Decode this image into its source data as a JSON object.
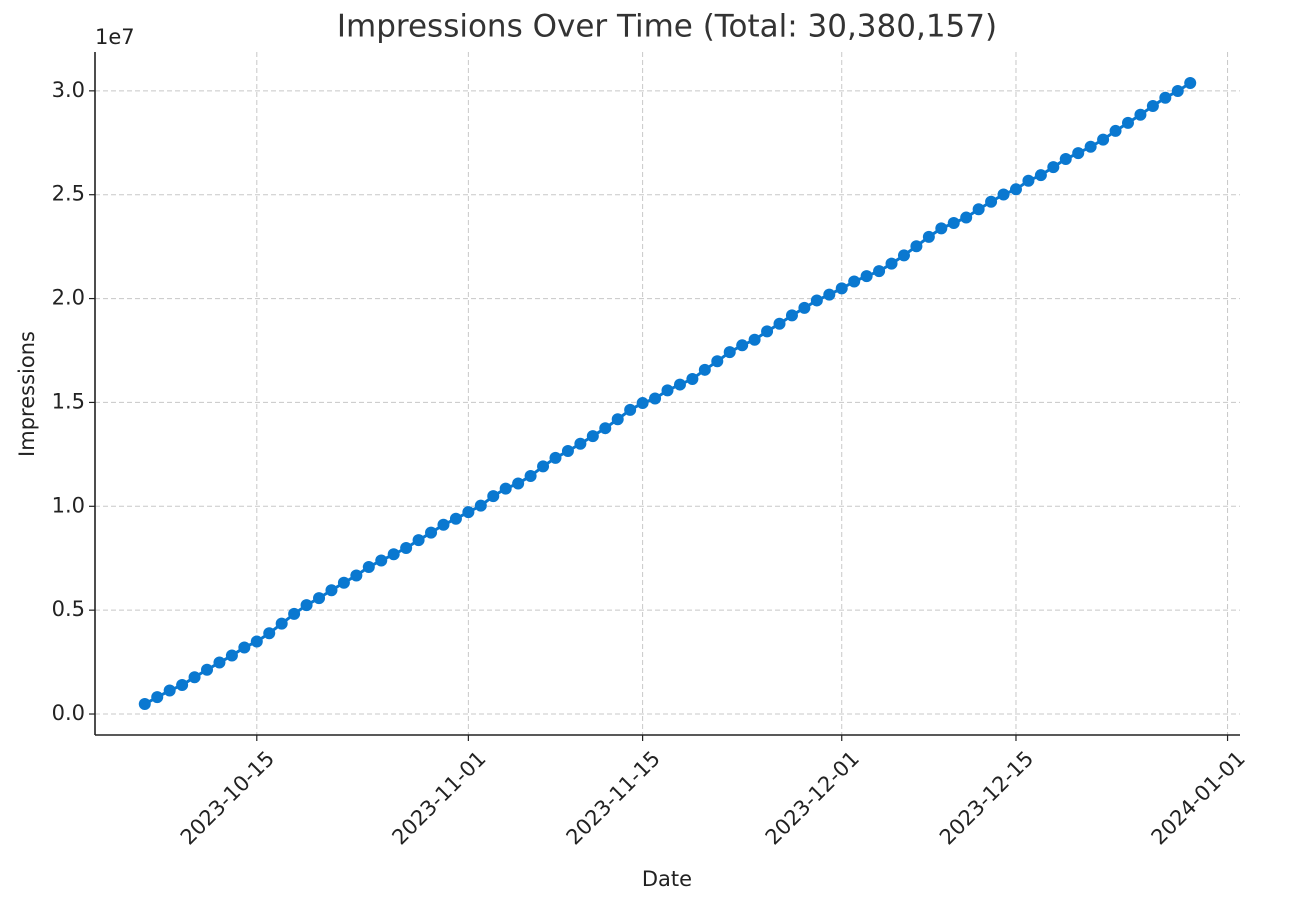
{
  "chart_data": {
    "type": "line",
    "title": "Impressions Over Time (Total: 30,380,157)",
    "x_label": "Date",
    "y_label": "Impressions",
    "y_offset_label": "1e7",
    "color": "#0a78d0",
    "grid": true,
    "x": [
      "2023-10-06",
      "2023-10-07",
      "2023-10-08",
      "2023-10-09",
      "2023-10-10",
      "2023-10-11",
      "2023-10-12",
      "2023-10-13",
      "2023-10-14",
      "2023-10-15",
      "2023-10-16",
      "2023-10-17",
      "2023-10-18",
      "2023-10-19",
      "2023-10-20",
      "2023-10-21",
      "2023-10-22",
      "2023-10-23",
      "2023-10-24",
      "2023-10-25",
      "2023-10-26",
      "2023-10-27",
      "2023-10-28",
      "2023-10-29",
      "2023-10-30",
      "2023-10-31",
      "2023-11-01",
      "2023-11-02",
      "2023-11-03",
      "2023-11-04",
      "2023-11-05",
      "2023-11-06",
      "2023-11-07",
      "2023-11-08",
      "2023-11-09",
      "2023-11-10",
      "2023-11-11",
      "2023-11-12",
      "2023-11-13",
      "2023-11-14",
      "2023-11-15",
      "2023-11-16",
      "2023-11-17",
      "2023-11-18",
      "2023-11-19",
      "2023-11-20",
      "2023-11-21",
      "2023-11-22",
      "2023-11-23",
      "2023-11-24",
      "2023-11-25",
      "2023-11-26",
      "2023-11-27",
      "2023-11-28",
      "2023-11-29",
      "2023-11-30",
      "2023-12-01",
      "2023-12-02",
      "2023-12-03",
      "2023-12-04",
      "2023-12-05",
      "2023-12-06",
      "2023-12-07",
      "2023-12-08",
      "2023-12-09",
      "2023-12-10",
      "2023-12-11",
      "2023-12-12",
      "2023-12-13",
      "2023-12-14",
      "2023-12-15",
      "2023-12-16",
      "2023-12-17",
      "2023-12-18",
      "2023-12-19",
      "2023-12-20",
      "2023-12-21",
      "2023-12-22",
      "2023-12-23",
      "2023-12-24",
      "2023-12-25",
      "2023-12-26",
      "2023-12-27",
      "2023-12-28",
      "2023-12-29"
    ],
    "values": [
      480000,
      812000,
      1130000,
      1395000,
      1772000,
      2130000,
      2478000,
      2815000,
      3204000,
      3490000,
      3890000,
      4350000,
      4820000,
      5240000,
      5580000,
      5960000,
      6320000,
      6670000,
      7080000,
      7390000,
      7690000,
      7990000,
      8370000,
      8730000,
      9110000,
      9400000,
      9720000,
      10030000,
      10490000,
      10850000,
      11100000,
      11460000,
      11920000,
      12330000,
      12660000,
      13010000,
      13380000,
      13760000,
      14190000,
      14640000,
      14970000,
      15190000,
      15580000,
      15860000,
      16130000,
      16570000,
      16980000,
      17420000,
      17750000,
      18020000,
      18420000,
      18790000,
      19190000,
      19550000,
      19910000,
      20190000,
      20490000,
      20820000,
      21080000,
      21320000,
      21680000,
      22080000,
      22520000,
      22970000,
      23380000,
      23640000,
      23900000,
      24300000,
      24660000,
      25010000,
      25260000,
      25670000,
      25940000,
      26330000,
      26720000,
      27000000,
      27310000,
      27650000,
      28070000,
      28460000,
      28850000,
      29270000,
      29670000,
      29990000,
      30380157
    ],
    "xlim": [
      "2023-10-02",
      "2024-01-02"
    ],
    "xticks": [
      "2023-10-15",
      "2023-11-01",
      "2023-11-15",
      "2023-12-01",
      "2023-12-15",
      "2024-01-01"
    ],
    "ylim": [
      -1010000,
      31870000
    ],
    "yticks": [
      {
        "value": 0,
        "label": "0.0"
      },
      {
        "value": 5000000,
        "label": "0.5"
      },
      {
        "value": 10000000,
        "label": "1.0"
      },
      {
        "value": 15000000,
        "label": "1.5"
      },
      {
        "value": 20000000,
        "label": "2.0"
      },
      {
        "value": 25000000,
        "label": "2.5"
      },
      {
        "value": 30000000,
        "label": "3.0"
      }
    ]
  }
}
